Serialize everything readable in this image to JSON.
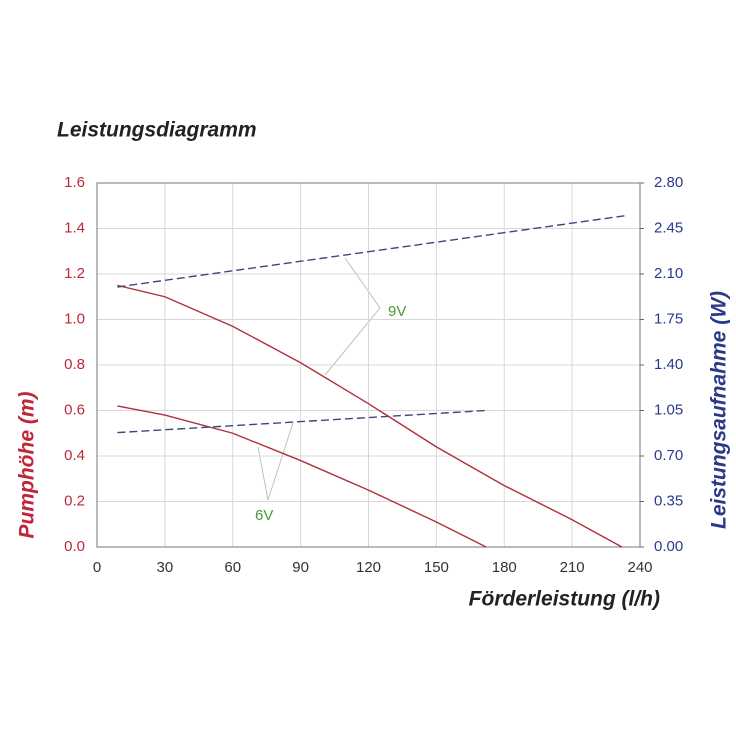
{
  "chart_data": {
    "type": "line",
    "title": "Leistungsdiagramm",
    "x_label": "Förderleistung (l/h)",
    "y_label": "Pumphöhe (m)",
    "y2_label": "Leistungsaufnahme (W)",
    "xlim": [
      0,
      240
    ],
    "xticks": [
      0,
      30,
      60,
      90,
      120,
      150,
      180,
      210,
      240
    ],
    "ylim": [
      0,
      1.6
    ],
    "yticks": [
      {
        "value": 0,
        "label": "0.0"
      },
      0.2,
      0.4,
      0.6,
      0.8,
      {
        "value": 1,
        "label": "1.0"
      },
      1.2,
      1.4,
      1.6
    ],
    "y2lim": [
      0,
      2.8
    ],
    "y2ticks": [
      {
        "value": 0,
        "label": "0.00"
      },
      {
        "value": 0.35,
        "label": "0.35"
      },
      {
        "value": 0.7,
        "label": "0.70"
      },
      {
        "value": 1.05,
        "label": "1.05"
      },
      {
        "value": 1.4,
        "label": "1.40"
      },
      {
        "value": 1.75,
        "label": "1.75"
      },
      {
        "value": 2.1,
        "label": "2.10"
      },
      {
        "value": 2.45,
        "label": "2.45"
      },
      {
        "value": 2.8,
        "label": "2.80"
      }
    ],
    "grid": true,
    "series": [
      {
        "color": "#b0303c",
        "x": [
          9,
          30,
          60,
          90,
          120,
          150,
          180,
          210,
          232
        ],
        "values": [
          1.15,
          1.1,
          0.97,
          0.81,
          0.63,
          0.44,
          0.27,
          0.12,
          0
        ]
      },
      {
        "color": "#b0303c",
        "x": [
          9,
          30,
          60,
          90,
          120,
          150,
          172
        ],
        "values": [
          0.62,
          0.58,
          0.5,
          0.38,
          0.25,
          0.11,
          0
        ]
      },
      {
        "color": "#3a4a7a",
        "axis": "y2",
        "dashed": true,
        "x": [
          9,
          234
        ],
        "values": [
          2.0,
          2.55
        ]
      },
      {
        "color": "#3a4a7a",
        "axis": "y2",
        "dashed": true,
        "x": [
          9,
          172
        ],
        "values": [
          0.88,
          1.05
        ]
      }
    ],
    "annotations": [
      {
        "text": "9V"
      },
      {
        "text": "6V"
      }
    ]
  }
}
